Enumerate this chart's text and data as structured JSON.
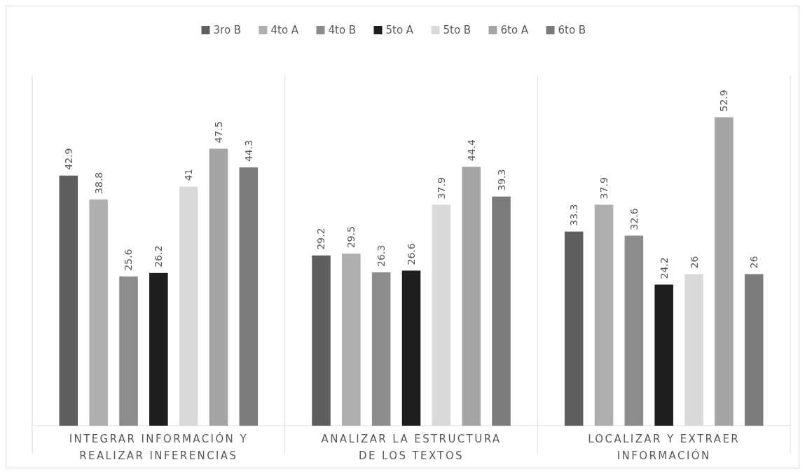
{
  "chart_data": {
    "type": "bar",
    "categories": [
      "INTEGRAR INFORMACIÓN Y REALIZAR INFERENCIAS",
      "ANALIZAR LA ESTRUCTURA DE LOS TEXTOS",
      "LOCALIZAR Y EXTRAER INFORMACIÓN"
    ],
    "series": [
      {
        "name": "3ro B",
        "color": "#5f5f5f",
        "values": [
          42.9,
          29.2,
          33.3
        ]
      },
      {
        "name": "4to A",
        "color": "#afafaf",
        "values": [
          38.8,
          29.5,
          37.9
        ]
      },
      {
        "name": "4to B",
        "color": "#8c8c8c",
        "values": [
          25.6,
          26.3,
          32.6
        ]
      },
      {
        "name": "5to A",
        "color": "#1e1e1e",
        "values": [
          26.2,
          26.6,
          24.2
        ]
      },
      {
        "name": "5to B",
        "color": "#dadada",
        "values": [
          41,
          37.9,
          26
        ]
      },
      {
        "name": "6to A",
        "color": "#a5a5a5",
        "values": [
          47.5,
          44.4,
          52.9
        ]
      },
      {
        "name": "6to B",
        "color": "#7b7b7b",
        "values": [
          44.3,
          39.3,
          26
        ]
      }
    ],
    "data_labels": true,
    "legend": "top",
    "grid": false
  }
}
